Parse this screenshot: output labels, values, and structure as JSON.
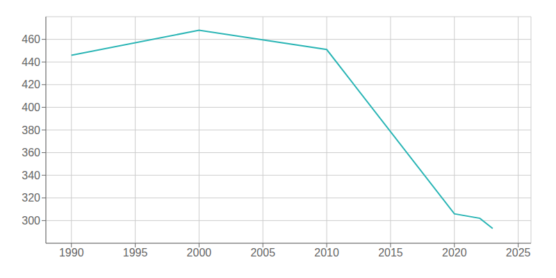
{
  "chart_data": {
    "type": "line",
    "x": [
      1990,
      2000,
      2010,
      2020,
      2022,
      2023
    ],
    "values": [
      446,
      468,
      451,
      306,
      302,
      293
    ],
    "color": "#2ab5b5",
    "xlim": [
      1988,
      2026
    ],
    "ylim": [
      280,
      480
    ],
    "xticks": [
      1990,
      1995,
      2000,
      2005,
      2010,
      2015,
      2020,
      2025
    ],
    "yticks": [
      300,
      320,
      340,
      360,
      380,
      400,
      420,
      440,
      460
    ],
    "grid": true
  }
}
